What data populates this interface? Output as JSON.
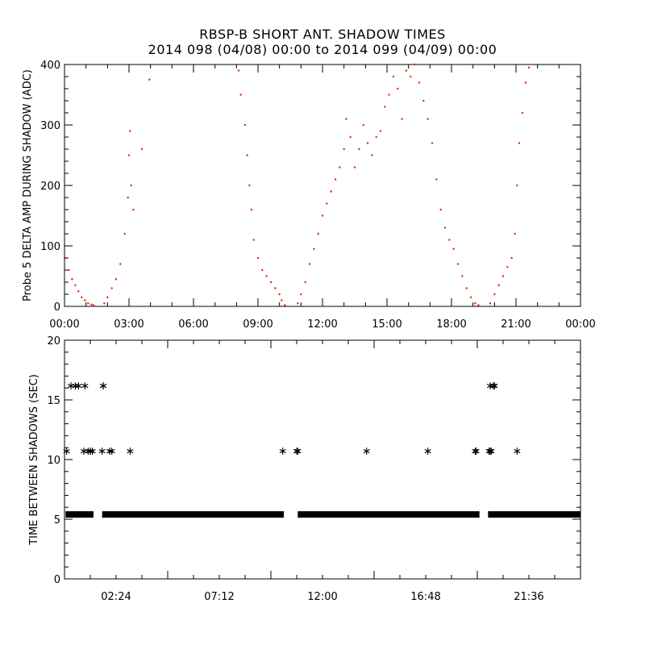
{
  "title": "RBSP-B SHORT ANT. SHADOW TIMES",
  "subtitle": "2014 098 (04/08) 00:00 to 2014 099 (04/09) 00:00",
  "colors": {
    "top_points": "#e8200c",
    "bottom_points": "#000000",
    "axes": "#000000"
  },
  "chart_data": [
    {
      "type": "scatter",
      "ylabel": "Probe 5 DELTA AMP DURING SHADOW (ADC)",
      "xlabel": "",
      "xlim": [
        0,
        24
      ],
      "ylim": [
        0,
        400
      ],
      "x_tick_labels": [
        "00:00",
        "03:00",
        "06:00",
        "09:00",
        "12:00",
        "15:00",
        "18:00",
        "21:00",
        "00:00"
      ],
      "x_tick_values": [
        0,
        3,
        6,
        9,
        12,
        15,
        18,
        21,
        24
      ],
      "y_tick_values": [
        0,
        100,
        200,
        300,
        400
      ],
      "y_tick_labels": [
        "0",
        "100",
        "200",
        "300",
        "400"
      ],
      "series": [
        {
          "color": "#e8200c",
          "x": [
            0.05,
            0.2,
            0.35,
            0.5,
            0.65,
            0.8,
            0.95,
            1.1,
            1.25,
            1.35,
            1.85,
            2.0,
            2.2,
            2.4,
            2.6,
            2.8,
            2.95,
            3.0,
            3.05,
            3.1,
            3.2,
            3.6,
            3.95,
            8.1,
            8.2,
            8.4,
            8.5,
            8.6,
            8.7,
            8.8,
            9.0,
            9.2,
            9.4,
            9.6,
            9.8,
            10.0,
            10.1,
            10.25,
            10.85,
            11.0,
            11.2,
            11.4,
            11.6,
            11.8,
            12.0,
            12.2,
            12.4,
            12.6,
            12.8,
            13.0,
            13.1,
            13.3,
            13.5,
            13.7,
            13.9,
            14.1,
            14.3,
            14.5,
            14.7,
            14.9,
            15.1,
            15.3,
            15.5,
            15.7,
            15.9,
            16.1,
            16.3,
            16.5,
            16.7,
            16.9,
            17.1,
            17.3,
            17.5,
            17.7,
            17.9,
            18.1,
            18.3,
            18.5,
            18.7,
            18.9,
            19.1,
            19.25,
            19.8,
            20.0,
            20.2,
            20.4,
            20.6,
            20.8,
            20.95,
            21.05,
            21.15,
            21.3,
            21.45,
            21.6
          ],
          "y": [
            80,
            60,
            45,
            35,
            25,
            15,
            10,
            5,
            3,
            2,
            5,
            15,
            30,
            45,
            70,
            120,
            180,
            250,
            290,
            200,
            160,
            260,
            375,
            390,
            350,
            300,
            250,
            200,
            160,
            110,
            80,
            60,
            50,
            40,
            30,
            20,
            10,
            2,
            5,
            20,
            40,
            70,
            95,
            120,
            150,
            170,
            190,
            210,
            230,
            260,
            310,
            280,
            230,
            260,
            300,
            270,
            250,
            280,
            290,
            330,
            350,
            380,
            360,
            310,
            390,
            380,
            400,
            370,
            340,
            310,
            270,
            210,
            160,
            130,
            110,
            95,
            70,
            50,
            30,
            15,
            5,
            2,
            5,
            20,
            35,
            50,
            65,
            80,
            120,
            200,
            270,
            320,
            370,
            395
          ]
        }
      ]
    },
    {
      "type": "scatter",
      "ylabel": "TIME BETWEEN SHADOWS (SEC)",
      "xlabel": "",
      "xlim": [
        0,
        24
      ],
      "ylim": [
        0,
        20
      ],
      "x_tick_labels": [
        "02:24",
        "07:12",
        "12:00",
        "16:48",
        "21:36"
      ],
      "x_tick_values": [
        2.4,
        7.2,
        12.0,
        16.8,
        21.6
      ],
      "y_tick_values": [
        0,
        5,
        10,
        15,
        20
      ],
      "y_tick_labels": [
        "0",
        "5",
        "10",
        "15",
        "20"
      ],
      "baseline": {
        "y": 5.4,
        "segments": [
          [
            0.05,
            1.35
          ],
          [
            1.75,
            10.2
          ],
          [
            10.85,
            19.3
          ],
          [
            19.7,
            24.0
          ]
        ]
      },
      "series": [
        {
          "color": "#000000",
          "marker": "asterisk",
          "x": [
            0.1,
            0.65,
            0.9,
            0.95,
            1.1,
            1.2,
            1.3,
            1.75,
            1.8,
            2.1,
            2.2,
            3.05,
            10.15,
            10.8,
            10.85,
            14.05,
            16.9,
            19.1,
            19.15,
            19.75,
            19.8,
            19.85,
            20.0,
            21.05,
            0.3,
            0.5,
            1.8,
            19.8,
            19.95
          ],
          "y": [
            10.8,
            16.3,
            10.8,
            16.3,
            10.8,
            10.8,
            10.8,
            10.8,
            16.3,
            10.8,
            10.8,
            10.8,
            10.8,
            10.8,
            10.8,
            10.8,
            10.8,
            10.8,
            10.8,
            10.8,
            10.8,
            10.8,
            16.3,
            10.8,
            16.3,
            16.3,
            16.3,
            16.3,
            16.3
          ]
        }
      ]
    }
  ]
}
